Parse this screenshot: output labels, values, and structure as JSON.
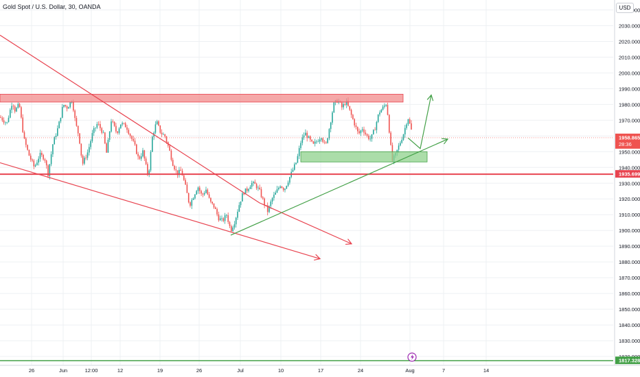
{
  "header": {
    "symbol_title": "Gold Spot / U.S. Dollar, 30, OANDA",
    "currency_button": "USD"
  },
  "colors": {
    "up": "#26a69a",
    "down": "#ef5350",
    "trend_red": "#e8434f",
    "trend_green": "#43a047",
    "resistance_zone_fill": "#f28b8b",
    "support_zone_fill": "#8fd18c",
    "grid": "#eef0f3"
  },
  "chart_data": {
    "type": "candlestick",
    "ylim": [
      1814.8,
      2046.3
    ],
    "y_ticks": [
      "1820.000",
      "1830.000",
      "1840.000",
      "1850.000",
      "1860.000",
      "1870.000",
      "1880.000",
      "1890.000",
      "1900.000",
      "1910.000",
      "1920.000",
      "1930.000",
      "1940.000",
      "1950.000",
      "1960.000",
      "1970.000",
      "1980.000",
      "1990.000",
      "2000.000",
      "2010.000",
      "2020.000",
      "2030.000",
      "2040.000"
    ],
    "x_ticks": [
      "26",
      "Jun",
      "12:00",
      "12",
      "19",
      "26",
      "Jul",
      "10",
      "17",
      "24",
      "Aug",
      "7",
      "14"
    ],
    "price_labels": {
      "last_price": "1958.865",
      "countdown": "28:36",
      "horizontal_level": "1935.699",
      "bottom_level": "1817.328"
    },
    "price_path": [
      [
        0,
        1972
      ],
      [
        10,
        1968
      ],
      [
        18,
        1982
      ],
      [
        22,
        1976
      ],
      [
        28,
        1980
      ],
      [
        35,
        1958
      ],
      [
        42,
        1948
      ],
      [
        50,
        1940
      ],
      [
        58,
        1948
      ],
      [
        65,
        1946
      ],
      [
        70,
        1936
      ],
      [
        77,
        1955
      ],
      [
        85,
        1966
      ],
      [
        92,
        1980
      ],
      [
        98,
        1978
      ],
      [
        105,
        1983
      ],
      [
        110,
        1968
      ],
      [
        115,
        1960
      ],
      [
        120,
        1942
      ],
      [
        128,
        1950
      ],
      [
        135,
        1962
      ],
      [
        142,
        1968
      ],
      [
        150,
        1962
      ],
      [
        155,
        1949
      ],
      [
        162,
        1970
      ],
      [
        170,
        1962
      ],
      [
        176,
        1968
      ],
      [
        184,
        1966
      ],
      [
        190,
        1960
      ],
      [
        196,
        1954
      ],
      [
        202,
        1945
      ],
      [
        208,
        1950
      ],
      [
        212,
        1942
      ],
      [
        216,
        1934
      ],
      [
        222,
        1960
      ],
      [
        228,
        1969
      ],
      [
        234,
        1962
      ],
      [
        240,
        1960
      ],
      [
        246,
        1952
      ],
      [
        252,
        1942
      ],
      [
        258,
        1936
      ],
      [
        264,
        1938
      ],
      [
        270,
        1928
      ],
      [
        276,
        1916
      ],
      [
        282,
        1922
      ],
      [
        288,
        1928
      ],
      [
        294,
        1922
      ],
      [
        300,
        1926
      ],
      [
        306,
        1918
      ],
      [
        312,
        1915
      ],
      [
        318,
        1908
      ],
      [
        324,
        1906
      ],
      [
        330,
        1910
      ],
      [
        336,
        1900
      ],
      [
        342,
        1906
      ],
      [
        348,
        1916
      ],
      [
        354,
        1924
      ],
      [
        360,
        1926
      ],
      [
        366,
        1930
      ],
      [
        372,
        1929
      ],
      [
        378,
        1925
      ],
      [
        384,
        1918
      ],
      [
        390,
        1912
      ],
      [
        396,
        1920
      ],
      [
        402,
        1924
      ],
      [
        408,
        1929
      ],
      [
        414,
        1926
      ],
      [
        420,
        1932
      ],
      [
        426,
        1938
      ],
      [
        432,
        1944
      ],
      [
        438,
        1956
      ],
      [
        444,
        1962
      ],
      [
        450,
        1958
      ],
      [
        456,
        1954
      ],
      [
        462,
        1957
      ],
      [
        468,
        1960
      ],
      [
        474,
        1953
      ],
      [
        480,
        1966
      ],
      [
        486,
        1980
      ],
      [
        492,
        1983
      ],
      [
        498,
        1978
      ],
      [
        504,
        1982
      ],
      [
        510,
        1975
      ],
      [
        516,
        1968
      ],
      [
        522,
        1961
      ],
      [
        528,
        1965
      ],
      [
        534,
        1960
      ],
      [
        540,
        1958
      ],
      [
        546,
        1965
      ],
      [
        552,
        1975
      ],
      [
        558,
        1978
      ],
      [
        563,
        1981
      ],
      [
        568,
        1958
      ],
      [
        571,
        1944
      ],
      [
        576,
        1948
      ],
      [
        582,
        1955
      ],
      [
        588,
        1962
      ],
      [
        594,
        1972
      ],
      [
        600,
        1962
      ]
    ],
    "annotations": {
      "resistance_zone": [
        1981.5,
        1986.5
      ],
      "support_zone": [
        1943.5,
        1950.0
      ],
      "horizontal_line": 1935.699,
      "bottom_line": 1817.328,
      "trend_upper_red": [
        [
          0,
          2024
        ],
        [
          378,
          1917.5
        ],
        [
          512,
          1891.5
        ]
      ],
      "trend_lower_red": [
        [
          0,
          1943
        ],
        [
          466,
          1882
        ]
      ],
      "trend_green": [
        [
          336,
          1897
        ],
        [
          652,
          1958
        ]
      ],
      "arrow_up_green": [
        [
          612,
          1952
        ],
        [
          628,
          1986
        ]
      ]
    }
  }
}
